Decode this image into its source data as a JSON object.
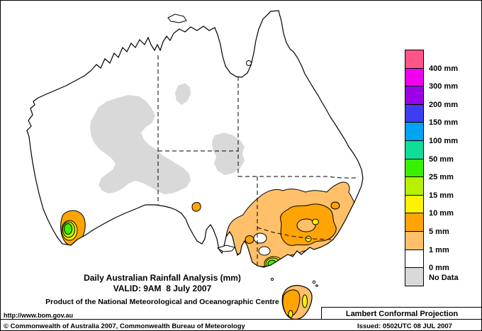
{
  "title": {
    "line1": "Daily Australian Rainfall Analysis (mm)",
    "line2": "VALID: 9AM  8 July 2007",
    "line3": "Product of the National Meteorological and Oceanographic Centre"
  },
  "legend": {
    "unit": "mm",
    "entries": [
      {
        "label": "400 mm",
        "color": "#FF5588"
      },
      {
        "label": "300 mm",
        "color": "#F000F0"
      },
      {
        "label": "200 mm",
        "color": "#9B00E6"
      },
      {
        "label": "150 mm",
        "color": "#3D3DF2"
      },
      {
        "label": "100 mm",
        "color": "#00A2F2"
      },
      {
        "label": "50 mm",
        "color": "#0FDE96"
      },
      {
        "label": "25 mm",
        "color": "#3BEF00"
      },
      {
        "label": "15 mm",
        "color": "#B9F000"
      },
      {
        "label": "10 mm",
        "color": "#FFF200"
      },
      {
        "label": "5 mm",
        "color": "#FFA405"
      },
      {
        "label": "1 mm",
        "color": "#FFC069"
      },
      {
        "label": "0 mm",
        "color": "#FFFFFF"
      },
      {
        "label": "No Data",
        "color": "#D9D9D9"
      }
    ]
  },
  "footer": {
    "url": "http://www.bom.gov.au",
    "copyright": "© Commonwealth of Australia 2007, Commonwealth Bureau of Meteorology",
    "projection": "Lambert Conformal Projection",
    "issued": "Issued: 0502UTC 08 JUL 2007"
  },
  "map": {
    "region": "Australia"
  }
}
